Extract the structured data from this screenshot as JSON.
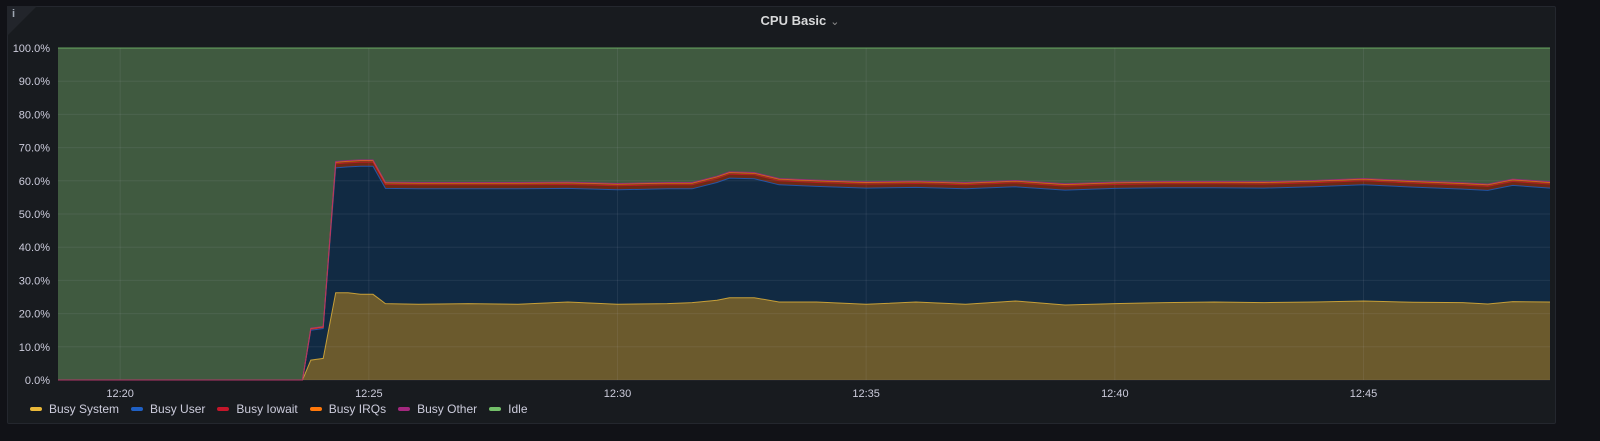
{
  "panel": {
    "title": "CPU Basic",
    "info_icon": "info-icon",
    "menu_icon": "chevron-down-icon"
  },
  "colors": {
    "background": "#181b1f",
    "grid": "#2c3235",
    "axis_text": "#ccccdc"
  },
  "chart_data": {
    "type": "area",
    "stacked": true,
    "title": "CPU Basic",
    "xlabel": "",
    "ylabel": "",
    "xlim": [
      "12:18:45",
      "12:48:45"
    ],
    "ylim": [
      0,
      100
    ],
    "y_unit": "%",
    "grid": true,
    "legend_placement": "bottom-left",
    "x_ticks": [
      "12:20",
      "12:25",
      "12:30",
      "12:35",
      "12:40",
      "12:45"
    ],
    "y_ticks": [
      "0.0%",
      "10.0%",
      "20.0%",
      "30.0%",
      "40.0%",
      "50.0%",
      "60.0%",
      "70.0%",
      "80.0%",
      "90.0%",
      "100.0%"
    ],
    "x": [
      "12:18:45",
      "12:23:40",
      "12:23:50",
      "12:24:05",
      "12:24:20",
      "12:24:35",
      "12:24:50",
      "12:25:05",
      "12:25:20",
      "12:26:00",
      "12:27:00",
      "12:28:00",
      "12:29:00",
      "12:30:00",
      "12:31:00",
      "12:31:30",
      "12:32:00",
      "12:32:15",
      "12:32:45",
      "12:33:15",
      "12:34:00",
      "12:35:00",
      "12:36:00",
      "12:37:00",
      "12:38:00",
      "12:39:00",
      "12:40:00",
      "12:41:00",
      "12:42:00",
      "12:43:00",
      "12:44:00",
      "12:45:00",
      "12:46:00",
      "12:47:00",
      "12:47:30",
      "12:48:00",
      "12:48:45"
    ],
    "series": [
      {
        "name": "Busy System",
        "color": "#EAB839",
        "fill": "#6b5a2d",
        "values": [
          0,
          0,
          6,
          6.5,
          26.3,
          26.3,
          25.8,
          25.8,
          23,
          22.8,
          23,
          22.8,
          23.5,
          22.8,
          23,
          23.3,
          24,
          24.8,
          24.8,
          23.5,
          23.5,
          22.8,
          23.5,
          22.8,
          23.8,
          22.6,
          23,
          23.3,
          23.5,
          23.3,
          23.5,
          23.8,
          23.4,
          23.3,
          22.9,
          23.6,
          23.5
        ]
      },
      {
        "name": "Busy User",
        "color": "#1F60C4",
        "fill": "#112a43",
        "values": [
          0,
          0,
          9,
          9,
          37.6,
          37.9,
          38.6,
          38.6,
          34.7,
          34.8,
          34.6,
          34.8,
          34.2,
          34.5,
          34.6,
          34.3,
          35.5,
          36,
          35.8,
          35.3,
          34.8,
          35,
          34.5,
          34.8,
          34.4,
          34.6,
          34.7,
          34.6,
          34.4,
          34.5,
          34.7,
          35,
          34.7,
          34.2,
          34.2,
          35,
          34.3
        ]
      },
      {
        "name": "Busy Iowait",
        "color": "#C4162A",
        "fill": "#6e2a14",
        "values": [
          0,
          0,
          0.3,
          0.3,
          1.2,
          1.2,
          1.2,
          1.2,
          1.2,
          1.2,
          1.2,
          1.2,
          1.2,
          1.2,
          1.2,
          1.2,
          1.2,
          1.2,
          1.2,
          1.2,
          1.2,
          1.2,
          1.2,
          1.2,
          1.2,
          1.2,
          1.2,
          1.2,
          1.2,
          1.2,
          1.2,
          1.2,
          1.2,
          1.2,
          1.2,
          1.2,
          1.2
        ]
      },
      {
        "name": "Busy IRQs",
        "color": "#FF780A",
        "fill": "#7a4418",
        "values": [
          0,
          0,
          0.2,
          0.2,
          0.5,
          0.5,
          0.5,
          0.5,
          0.5,
          0.5,
          0.5,
          0.5,
          0.5,
          0.5,
          0.5,
          0.5,
          0.5,
          0.5,
          0.5,
          0.5,
          0.5,
          0.5,
          0.5,
          0.5,
          0.5,
          0.5,
          0.5,
          0.5,
          0.5,
          0.5,
          0.5,
          0.5,
          0.5,
          0.5,
          0.5,
          0.5,
          0.5
        ]
      },
      {
        "name": "Busy Other",
        "color": "#A3287E",
        "fill": "#5a3a48",
        "values": [
          0,
          0,
          0.1,
          0.1,
          0.2,
          0.2,
          0.2,
          0.2,
          0.2,
          0.2,
          0.2,
          0.2,
          0.2,
          0.2,
          0.2,
          0.2,
          0.2,
          0.2,
          0.2,
          0.2,
          0.2,
          0.2,
          0.2,
          0.2,
          0.2,
          0.2,
          0.2,
          0.2,
          0.2,
          0.2,
          0.2,
          0.2,
          0.2,
          0.2,
          0.2,
          0.2,
          0.2
        ]
      },
      {
        "name": "Idle",
        "color": "#73BF69",
        "fill": "#405a40",
        "values": [
          100,
          100,
          84.4,
          83.9,
          34.2,
          33.9,
          33.7,
          33.7,
          40.4,
          40.5,
          40.5,
          40.5,
          40.4,
          40.8,
          40.5,
          40.5,
          38.6,
          37.3,
          37.5,
          39.3,
          39.8,
          40.3,
          40.1,
          40.5,
          39.9,
          40.9,
          40.4,
          40.2,
          40.2,
          40.3,
          39.9,
          39.3,
          40,
          40.6,
          41,
          39.5,
          40.3
        ]
      }
    ]
  }
}
